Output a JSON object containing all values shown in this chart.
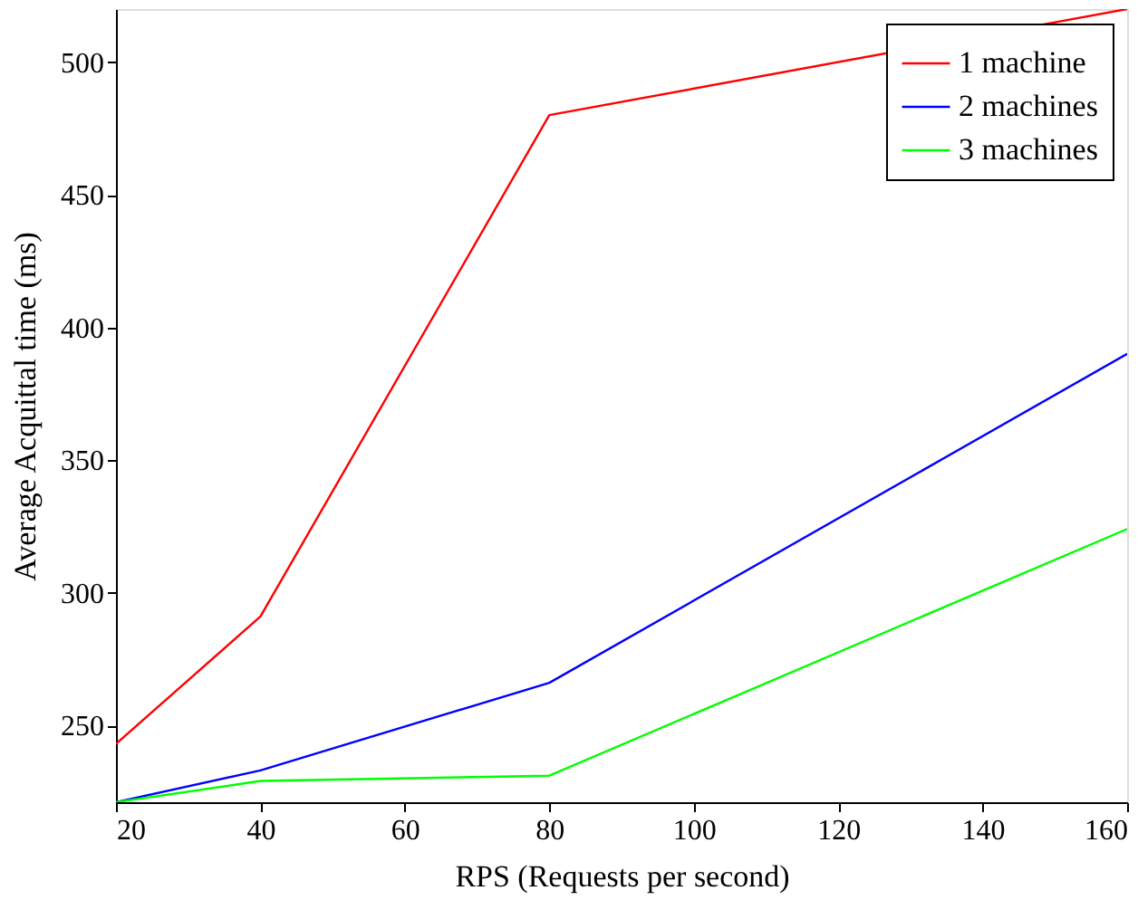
{
  "chart_data": {
    "type": "line",
    "xlabel": "RPS (Requests per second)",
    "ylabel": "Average Acquittal time (ms)",
    "x": [
      20,
      40,
      80,
      160
    ],
    "series": [
      {
        "name": "1 machine",
        "color": "#ff0000",
        "values": [
          243,
          291,
          480,
          520
        ]
      },
      {
        "name": "2 machines",
        "color": "#0000ff",
        "values": [
          221,
          233,
          266,
          390
        ]
      },
      {
        "name": "3 machines",
        "color": "#00ff00",
        "values": [
          221,
          229,
          231,
          324
        ]
      }
    ],
    "xlim": [
      20,
      160
    ],
    "ylim": [
      221,
      520
    ],
    "xticks": [
      20,
      40,
      60,
      80,
      100,
      120,
      140,
      160
    ],
    "yticks": [
      250,
      300,
      350,
      400,
      450,
      500
    ],
    "grid": false,
    "legend": "top right",
    "marker": "none",
    "line_style": "solid"
  }
}
